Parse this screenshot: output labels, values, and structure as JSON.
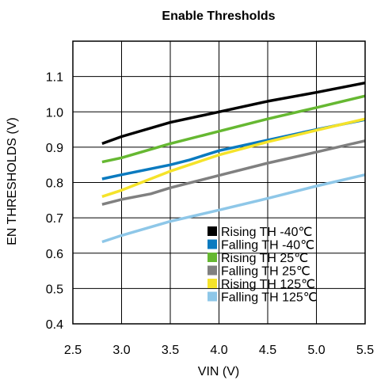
{
  "chart_data": {
    "type": "line",
    "title": "Enable Thresholds",
    "xlabel": "VIN (V)",
    "ylabel": "EN THRESHOLDS (V)",
    "xlim": [
      2.5,
      5.5
    ],
    "ylim": [
      0.4,
      1.2
    ],
    "xticks": [
      "2.5",
      "3.0",
      "3.5",
      "4.0",
      "4.5",
      "5.0",
      "5.5"
    ],
    "yticks": [
      "0.4",
      "0.5",
      "0.6",
      "0.7",
      "0.8",
      "0.9",
      "1.0",
      "1.1"
    ],
    "grid": true,
    "legend_position": "bottom-right",
    "series": [
      {
        "name": "Rising TH -40℃",
        "color": "#000000",
        "x": [
          2.8,
          3.0,
          3.5,
          4.0,
          4.5,
          5.0,
          5.5
        ],
        "y": [
          0.91,
          0.93,
          0.97,
          1.0,
          1.03,
          1.055,
          1.082
        ]
      },
      {
        "name": "Falling TH -40℃",
        "color": "#0a7abf",
        "x": [
          2.8,
          3.0,
          3.5,
          3.7,
          4.0,
          4.5,
          5.0,
          5.5
        ],
        "y": [
          0.81,
          0.822,
          0.85,
          0.864,
          0.89,
          0.92,
          0.95,
          0.978
        ]
      },
      {
        "name": "Rising TH 25℃",
        "color": "#66b832",
        "x": [
          2.8,
          3.0,
          3.5,
          4.0,
          4.5,
          5.0,
          5.5
        ],
        "y": [
          0.858,
          0.87,
          0.91,
          0.945,
          0.98,
          1.012,
          1.045
        ]
      },
      {
        "name": "Falling TH 25℃",
        "color": "#808080",
        "x": [
          2.8,
          3.0,
          3.3,
          3.5,
          4.0,
          4.5,
          5.0,
          5.5
        ],
        "y": [
          0.738,
          0.752,
          0.768,
          0.785,
          0.82,
          0.855,
          0.886,
          0.918
        ]
      },
      {
        "name": "Rising TH 125℃",
        "color": "#f5e32a",
        "x": [
          2.8,
          3.0,
          3.5,
          4.0,
          4.5,
          5.0,
          5.5
        ],
        "y": [
          0.76,
          0.778,
          0.832,
          0.878,
          0.915,
          0.948,
          0.98
        ]
      },
      {
        "name": "Falling TH 125℃",
        "color": "#8ec7e8",
        "x": [
          2.8,
          3.0,
          3.5,
          4.0,
          4.5,
          5.0,
          5.5
        ],
        "y": [
          0.632,
          0.65,
          0.69,
          0.722,
          0.755,
          0.79,
          0.822
        ]
      }
    ]
  }
}
